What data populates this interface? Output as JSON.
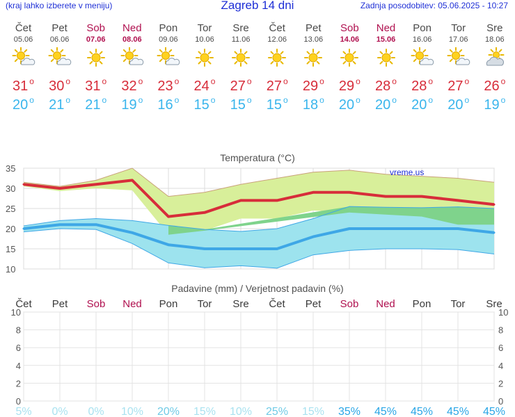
{
  "header": {
    "menu_hint": "(kraj lahko izberete v meniju)",
    "title": "Zagreb 14 dni",
    "updated": "Zadnja posodobitev: 05.06.2025 - 10:27"
  },
  "colors": {
    "max_line": "#d72d3a",
    "max_band": "#d8ef9a",
    "min_line": "#3ea7e6",
    "min_band": "#9de3ee",
    "overlap_band": "#7fd38c",
    "weekend": "#b0104f",
    "link": "#1e2fd6"
  },
  "days": [
    {
      "name": "Čet",
      "date": "05.06",
      "weekend": false,
      "icon": "sun-cloud-icon",
      "max": "31",
      "min": "20"
    },
    {
      "name": "Pet",
      "date": "06.06",
      "weekend": false,
      "icon": "sun-cloud-icon",
      "max": "30",
      "min": "21"
    },
    {
      "name": "Sob",
      "date": "07.06",
      "weekend": true,
      "icon": "sun-icon",
      "max": "31",
      "min": "21"
    },
    {
      "name": "Ned",
      "date": "08.06",
      "weekend": true,
      "icon": "sun-cloud-icon",
      "max": "32",
      "min": "19"
    },
    {
      "name": "Pon",
      "date": "09.06",
      "weekend": false,
      "icon": "sun-cloud-icon",
      "max": "23",
      "min": "16"
    },
    {
      "name": "Tor",
      "date": "10.06",
      "weekend": false,
      "icon": "sun-icon",
      "max": "24",
      "min": "15"
    },
    {
      "name": "Sre",
      "date": "11.06",
      "weekend": false,
      "icon": "sun-icon",
      "max": "27",
      "min": "15"
    },
    {
      "name": "Čet",
      "date": "12.06",
      "weekend": false,
      "icon": "sun-icon",
      "max": "27",
      "min": "15"
    },
    {
      "name": "Pet",
      "date": "13.06",
      "weekend": false,
      "icon": "sun-icon",
      "max": "29",
      "min": "18"
    },
    {
      "name": "Sob",
      "date": "14.06",
      "weekend": true,
      "icon": "sun-icon",
      "max": "29",
      "min": "20"
    },
    {
      "name": "Ned",
      "date": "15.06",
      "weekend": true,
      "icon": "sun-icon",
      "max": "28",
      "min": "20"
    },
    {
      "name": "Pon",
      "date": "16.06",
      "weekend": false,
      "icon": "sun-cloud-icon",
      "max": "28",
      "min": "20"
    },
    {
      "name": "Tor",
      "date": "17.06",
      "weekend": false,
      "icon": "sun-cloud-icon",
      "max": "27",
      "min": "20"
    },
    {
      "name": "Sre",
      "date": "18.06",
      "weekend": false,
      "icon": "cloud-sun-icon",
      "max": "26",
      "min": "19"
    }
  ],
  "chart_data": [
    {
      "type": "line",
      "title": "Temperatura (°C)",
      "credit": "vreme.us",
      "ylim": [
        10,
        35
      ],
      "yticks": [
        10,
        15,
        20,
        25,
        30,
        35
      ],
      "grid": true,
      "x": [
        "Čet",
        "Pet",
        "Sob",
        "Ned",
        "Pon",
        "Tor",
        "Sre",
        "Čet",
        "Pet",
        "Sob",
        "Ned",
        "Pon",
        "Tor",
        "Sre"
      ],
      "series": [
        {
          "values": [
            31,
            30,
            31,
            32,
            23,
            24,
            27,
            27,
            29,
            29,
            28,
            28,
            27,
            26
          ]
        },
        {
          "values": [
            20,
            21,
            21,
            19,
            16,
            15,
            15,
            15,
            18,
            20,
            20,
            20,
            20,
            19
          ]
        }
      ],
      "bands": [
        {
          "upper": [
            31.5,
            30.5,
            32,
            35,
            28,
            29,
            31,
            32.5,
            34,
            34.5,
            33.5,
            33,
            32.5,
            31.5
          ],
          "lower": [
            30.5,
            29.3,
            30,
            29.5,
            18.5,
            19.5,
            22.5,
            22.5,
            24.5,
            24,
            23.5,
            23,
            21,
            21
          ]
        },
        {
          "upper": [
            20.7,
            22,
            22.5,
            22,
            20.8,
            19.8,
            19.3,
            20,
            22.5,
            25.5,
            25.3,
            25.2,
            25.4,
            25
          ],
          "lower": [
            19.2,
            20,
            19.8,
            16.3,
            11.5,
            10.3,
            10.8,
            10.2,
            13.5,
            14.6,
            15,
            15,
            14.8,
            13.7
          ]
        }
      ]
    },
    {
      "type": "bar",
      "title": "Padavine (mm) / Verjetnost padavin (%)",
      "ylim": [
        0,
        10
      ],
      "yticks": [
        0,
        2,
        4,
        6,
        8,
        10
      ],
      "grid": true,
      "categories": [
        "Čet",
        "Pet",
        "Sob",
        "Ned",
        "Pon",
        "Tor",
        "Sre",
        "Čet",
        "Pet",
        "Sob",
        "Ned",
        "Pon",
        "Tor",
        "Sre"
      ],
      "values": [
        0,
        0,
        0,
        0,
        0,
        0,
        0,
        0,
        0,
        0,
        0,
        0,
        0,
        0
      ],
      "probability": [
        "5%",
        "0%",
        "0%",
        "10%",
        "20%",
        "15%",
        "10%",
        "25%",
        "15%",
        "35%",
        "45%",
        "45%",
        "45%",
        "45%"
      ],
      "probability_values": [
        5,
        0,
        0,
        10,
        20,
        15,
        10,
        25,
        15,
        35,
        45,
        45,
        45,
        45
      ]
    }
  ]
}
